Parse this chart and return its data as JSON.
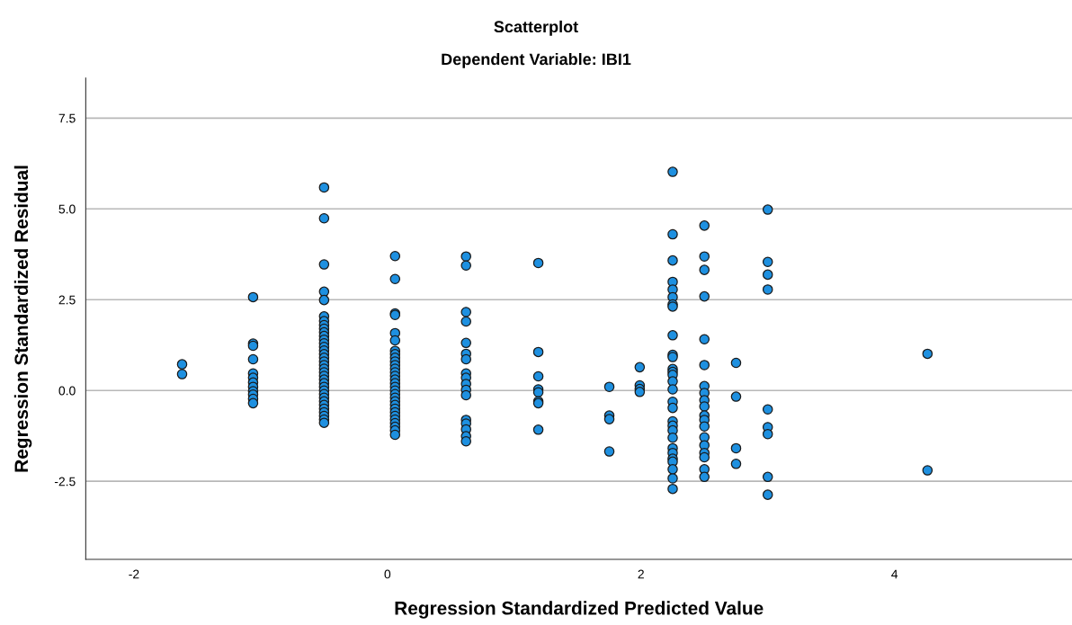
{
  "chart_data": {
    "type": "scatter",
    "title": "Scatterplot",
    "subtitle": "Dependent Variable: IBI1",
    "xlabel": "Regression Standardized Predicted Value",
    "ylabel": "Regression Standardized Residual",
    "xlim": [
      -2.38,
      5.4
    ],
    "ylim": [
      -4.65,
      8.6
    ],
    "xticks": [
      -2,
      0,
      2,
      4
    ],
    "yticks": [
      {
        "value": -2.5,
        "label": "-2.5"
      },
      {
        "value": 0,
        "label": "0.0"
      },
      {
        "value": 2.5,
        "label": "2.5"
      },
      {
        "value": 5,
        "label": "5.0"
      },
      {
        "value": 7.5,
        "label": "7.5"
      }
    ],
    "grid": "y",
    "marker": "circle",
    "series": [
      {
        "color": "#1e90e0",
        "x": [
          -1.62,
          -1.62,
          -1.06,
          -1.06,
          -1.06,
          -1.06,
          -1.06,
          -1.06,
          -1.06,
          -1.06,
          -1.06,
          -1.06,
          -1.06,
          -1.06,
          -0.5,
          -0.5,
          -0.5,
          -0.5,
          -0.5,
          -0.5,
          -0.5,
          -0.5,
          -0.5,
          -0.5,
          -0.5,
          -0.5,
          -0.5,
          -0.5,
          -0.5,
          -0.5,
          -0.5,
          -0.5,
          -0.5,
          -0.5,
          -0.5,
          -0.5,
          -0.5,
          -0.5,
          -0.5,
          -0.5,
          -0.5,
          -0.5,
          -0.5,
          -0.5,
          -0.5,
          -0.5,
          -0.5,
          -0.5,
          -0.5,
          0.06,
          0.06,
          0.06,
          0.06,
          0.06,
          0.06,
          0.06,
          0.06,
          0.06,
          0.06,
          0.06,
          0.06,
          0.06,
          0.06,
          0.06,
          0.06,
          0.06,
          0.06,
          0.06,
          0.06,
          0.06,
          0.06,
          0.06,
          0.06,
          0.06,
          0.06,
          0.06,
          0.06,
          0.06,
          0.06,
          0.62,
          0.62,
          0.62,
          0.62,
          0.62,
          0.62,
          0.62,
          0.62,
          0.62,
          0.62,
          0.62,
          0.62,
          0.62,
          0.62,
          0.62,
          0.62,
          0.62,
          1.19,
          1.19,
          1.19,
          1.19,
          1.19,
          1.19,
          1.19,
          1.19,
          1.75,
          1.75,
          1.75,
          1.75,
          1.99,
          1.99,
          1.99,
          1.99,
          2.25,
          2.25,
          2.25,
          2.25,
          2.25,
          2.25,
          2.25,
          2.25,
          2.25,
          2.25,
          2.25,
          2.25,
          2.25,
          2.25,
          2.25,
          2.25,
          2.25,
          2.25,
          2.25,
          2.25,
          2.25,
          2.25,
          2.25,
          2.25,
          2.25,
          2.25,
          2.25,
          2.25,
          2.25,
          2.5,
          2.5,
          2.5,
          2.5,
          2.5,
          2.5,
          2.5,
          2.5,
          2.5,
          2.5,
          2.5,
          2.5,
          2.5,
          2.5,
          2.5,
          2.5,
          2.5,
          2.5,
          2.5,
          2.75,
          2.75,
          2.75,
          2.75,
          3.0,
          3.0,
          3.0,
          3.0,
          3.0,
          3.0,
          3.0,
          3.0,
          3.0,
          4.26,
          4.26
        ],
        "values": [
          0.72,
          0.45,
          2.57,
          1.29,
          1.23,
          0.86,
          0.47,
          0.35,
          0.22,
          0.1,
          -0.02,
          -0.11,
          -0.23,
          -0.35,
          5.59,
          4.74,
          3.47,
          2.72,
          2.49,
          2.04,
          1.91,
          1.8,
          1.7,
          1.6,
          1.5,
          1.4,
          1.3,
          1.2,
          1.1,
          1.0,
          0.9,
          0.8,
          0.7,
          0.6,
          0.5,
          0.4,
          0.3,
          0.2,
          0.1,
          0.0,
          -0.1,
          -0.2,
          -0.3,
          -0.4,
          -0.5,
          -0.6,
          -0.7,
          -0.8,
          -0.89,
          3.7,
          3.07,
          2.12,
          2.08,
          1.58,
          1.38,
          1.09,
          1.0,
          0.9,
          0.8,
          0.7,
          0.6,
          0.5,
          0.4,
          0.3,
          0.2,
          0.1,
          0.0,
          -0.1,
          -0.2,
          -0.3,
          -0.4,
          -0.5,
          -0.6,
          -0.7,
          -0.8,
          -0.9,
          -1.0,
          -1.1,
          -1.22,
          3.69,
          3.44,
          2.16,
          1.9,
          1.31,
          1.01,
          0.86,
          0.47,
          0.35,
          0.18,
          0.02,
          -0.13,
          -0.81,
          -0.91,
          -1.07,
          -1.26,
          -1.4,
          3.51,
          1.06,
          0.39,
          0.03,
          -0.05,
          -0.3,
          -0.35,
          -1.08,
          0.1,
          -0.69,
          -0.79,
          -1.68,
          0.64,
          0.14,
          0.04,
          -0.04,
          6.02,
          4.3,
          3.58,
          2.99,
          2.78,
          2.57,
          2.37,
          2.31,
          1.52,
          0.98,
          0.92,
          0.59,
          0.51,
          0.43,
          0.25,
          0.03,
          -0.31,
          -0.48,
          -0.85,
          -0.97,
          -1.1,
          -1.3,
          -1.59,
          -1.72,
          -1.88,
          -1.96,
          -2.17,
          -2.42,
          -2.71,
          4.54,
          3.69,
          3.32,
          2.59,
          1.41,
          0.7,
          0.12,
          -0.07,
          -0.27,
          -0.44,
          -0.69,
          -0.81,
          -0.99,
          -1.29,
          -1.51,
          -1.72,
          -1.84,
          -2.17,
          -2.38,
          0.76,
          -0.17,
          -1.59,
          -2.02,
          4.98,
          3.54,
          3.19,
          2.78,
          -0.52,
          -1.01,
          -1.2,
          -2.38,
          -2.87,
          1.01,
          -2.2
        ]
      }
    ]
  }
}
